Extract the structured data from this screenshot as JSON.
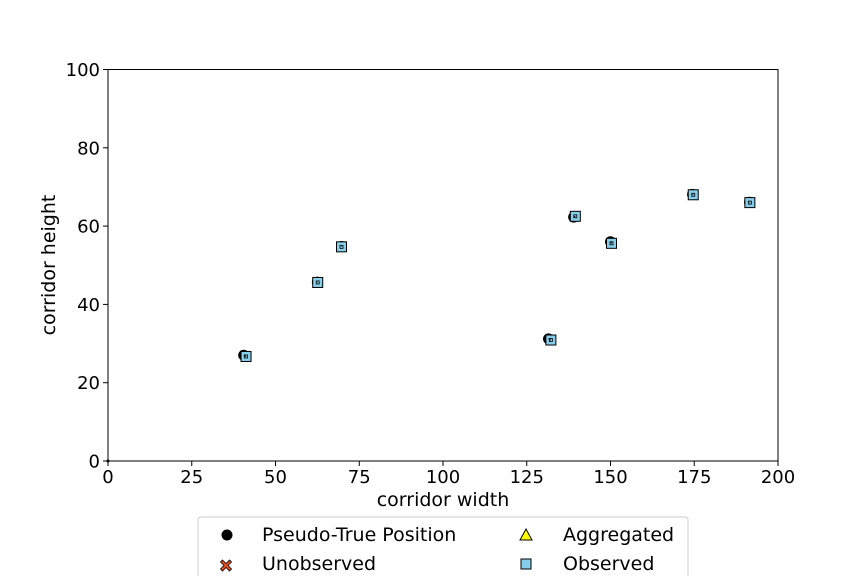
{
  "chart_data": {
    "type": "scatter",
    "title": "",
    "xlabel": "corridor width",
    "ylabel": "corridor height",
    "xlim": [
      0,
      200
    ],
    "ylim": [
      0,
      100
    ],
    "xticks": [
      0,
      25,
      50,
      75,
      100,
      125,
      150,
      175,
      200
    ],
    "yticks": [
      0,
      20,
      40,
      60,
      80,
      100
    ],
    "grid": false,
    "legend_position": "bottom-center",
    "series": [
      {
        "name": "Pseudo-True Position",
        "marker": "circle",
        "color": "#000000",
        "points": [
          {
            "x": 40.5,
            "y": 27.0
          },
          {
            "x": 62.5,
            "y": 45.7
          },
          {
            "x": 69.7,
            "y": 54.8
          },
          {
            "x": 131.5,
            "y": 31.2
          },
          {
            "x": 139.0,
            "y": 62.3
          },
          {
            "x": 150.0,
            "y": 56.0
          },
          {
            "x": 174.5,
            "y": 68.1
          },
          {
            "x": 191.5,
            "y": 66.1
          }
        ]
      },
      {
        "name": "Unobserved",
        "marker": "x",
        "color": "#e8501e",
        "points": []
      },
      {
        "name": "Aggregated",
        "marker": "triangle",
        "color": "#ffff00",
        "points": []
      },
      {
        "name": "Observed",
        "marker": "square",
        "color": "#87ceeb",
        "points": [
          {
            "x": 41.2,
            "y": 26.7
          },
          {
            "x": 62.6,
            "y": 45.6
          },
          {
            "x": 69.7,
            "y": 54.7
          },
          {
            "x": 132.2,
            "y": 30.9
          },
          {
            "x": 139.5,
            "y": 62.5
          },
          {
            "x": 150.3,
            "y": 55.6
          },
          {
            "x": 174.7,
            "y": 68.0
          },
          {
            "x": 191.6,
            "y": 66.0
          }
        ]
      }
    ]
  }
}
